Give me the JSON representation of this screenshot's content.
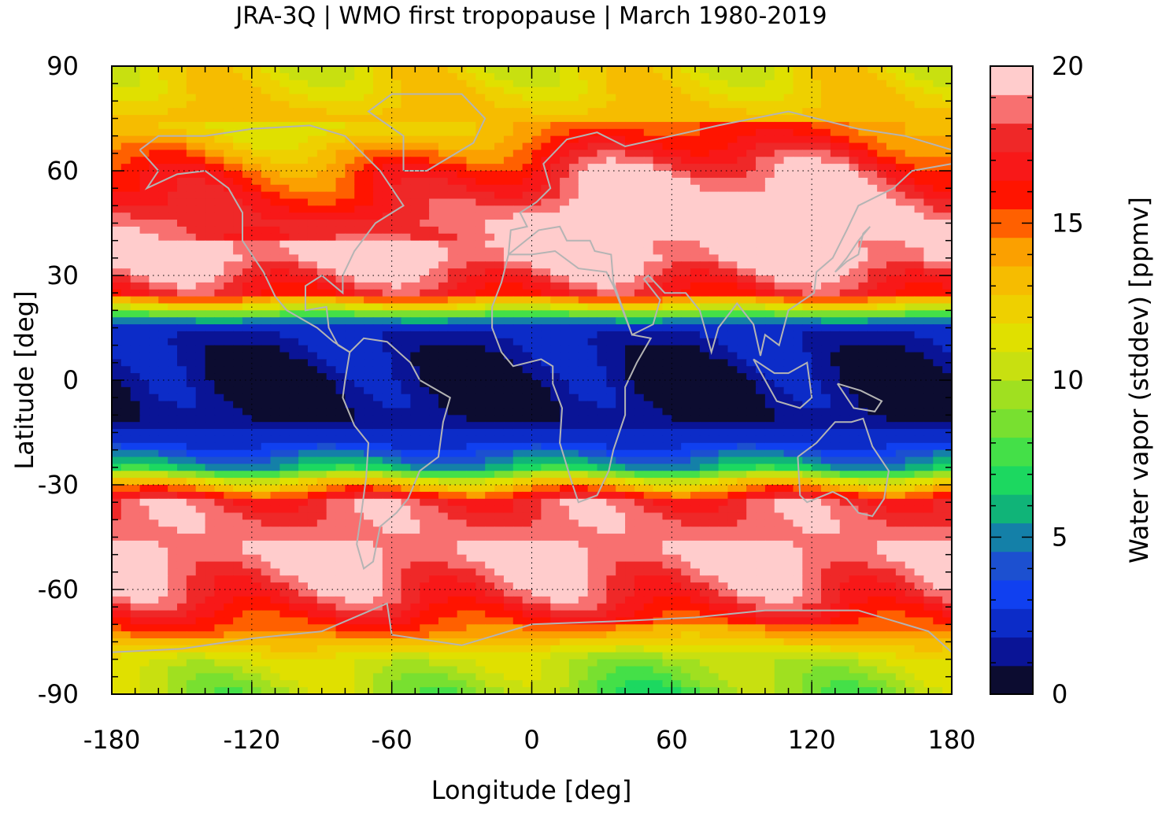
{
  "chart_data": {
    "type": "heatmap",
    "title": "JRA-3Q | WMO first tropopause | March 1980-2019",
    "xlabel": "Longitude [deg]",
    "ylabel": "Latitude [deg]",
    "colorbar_label": "Water vapor (stddev) [ppmv]",
    "xlim": [
      -180,
      180
    ],
    "ylim": [
      -90,
      90
    ],
    "xticks": [
      -180,
      -120,
      -60,
      0,
      60,
      120,
      180
    ],
    "xtick_labels": [
      "-180",
      "-120",
      "-60",
      "0",
      "60",
      "120",
      "180"
    ],
    "yticks": [
      90,
      60,
      30,
      0,
      -30,
      -60,
      -90
    ],
    "ytick_labels": [
      "90",
      "60",
      "30",
      "0",
      "-30",
      "-60",
      "-90"
    ],
    "grid": true,
    "colorbar": {
      "range": [
        0,
        20
      ],
      "ticks": [
        0,
        5,
        10,
        15,
        20
      ],
      "tick_labels": [
        "0",
        "5",
        "10",
        "15",
        "20"
      ],
      "levels": 20,
      "colors": [
        "#0c0c30",
        "#0a1496",
        "#0c2cc8",
        "#1040f0",
        "#1c50d0",
        "#1480a8",
        "#10b478",
        "#1cd860",
        "#44e048",
        "#78e030",
        "#a0e020",
        "#c8e010",
        "#e0e000",
        "#eed000",
        "#f6bc00",
        "#fba000",
        "#ff6000",
        "#ff1400",
        "#f81818",
        "#ef2828",
        "#f87070",
        "#ffcccc"
      ]
    },
    "latitude_profile": [
      {
        "lat": 90,
        "value": 11.5
      },
      {
        "lat": 80,
        "value": 12.5
      },
      {
        "lat": 70,
        "value": 14.0
      },
      {
        "lat": 60,
        "value": 17.0
      },
      {
        "lat": 45,
        "value": 19.5
      },
      {
        "lat": 35,
        "value": 20.0
      },
      {
        "lat": 25,
        "value": 17.0
      },
      {
        "lat": 20,
        "value": 10.0
      },
      {
        "lat": 15,
        "value": 2.0
      },
      {
        "lat": 0,
        "value": 0.5
      },
      {
        "lat": -10,
        "value": 0.8
      },
      {
        "lat": -18,
        "value": 2.5
      },
      {
        "lat": -25,
        "value": 6.0
      },
      {
        "lat": -29,
        "value": 12.0
      },
      {
        "lat": -35,
        "value": 18.0
      },
      {
        "lat": -50,
        "value": 19.5
      },
      {
        "lat": -62,
        "value": 18.0
      },
      {
        "lat": -72,
        "value": 15.0
      },
      {
        "lat": -80,
        "value": 11.0
      },
      {
        "lat": -90,
        "value": 9.5
      }
    ]
  }
}
